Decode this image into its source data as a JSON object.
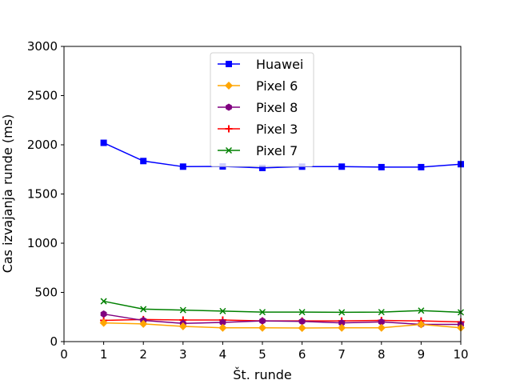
{
  "chart_data": {
    "type": "line",
    "xlabel": "Št. runde",
    "ylabel": "Cas izvajanja runde (ms)",
    "xlim": [
      0,
      10
    ],
    "ylim": [
      0,
      3000
    ],
    "x_ticks": [
      0,
      1,
      2,
      3,
      4,
      5,
      6,
      7,
      8,
      9,
      10
    ],
    "y_ticks": [
      0,
      500,
      1000,
      1500,
      2000,
      2500,
      3000
    ],
    "grid": false,
    "legend_position": "top-center",
    "x": [
      1,
      2,
      3,
      4,
      5,
      6,
      7,
      8,
      9,
      10
    ],
    "series": [
      {
        "name": "Huawei",
        "color": "#0000ff",
        "marker": "square",
        "values": [
          2020,
          1835,
          1778,
          1780,
          1765,
          1778,
          1778,
          1773,
          1773,
          1803
        ]
      },
      {
        "name": "Pixel 6",
        "color": "#ffa500",
        "marker": "diamond",
        "values": [
          190,
          180,
          155,
          140,
          140,
          138,
          140,
          140,
          175,
          140
        ]
      },
      {
        "name": "Pixel 8",
        "color": "#800080",
        "marker": "hexagon",
        "values": [
          280,
          215,
          185,
          195,
          210,
          205,
          190,
          200,
          175,
          175
        ]
      },
      {
        "name": "Pixel 3",
        "color": "#ff0000",
        "marker": "plus",
        "values": [
          215,
          225,
          220,
          220,
          210,
          210,
          210,
          215,
          210,
          200
        ]
      },
      {
        "name": "Pixel 7",
        "color": "#008000",
        "marker": "x",
        "values": [
          410,
          330,
          320,
          310,
          300,
          300,
          298,
          300,
          315,
          298
        ]
      }
    ]
  }
}
